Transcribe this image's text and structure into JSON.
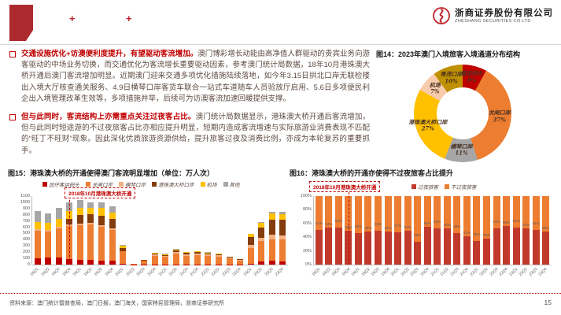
{
  "header": {
    "plus_left": "+",
    "plus_right": "+",
    "company_cn": "浙商证券股份有限公司",
    "company_en": "ZHESHANG SECURITIES CO.LTD",
    "brand_red": "#c0242b"
  },
  "bullets": [
    {
      "lead": "交通设施优化+访澳便利度提升，有望驱动客流增加。",
      "body": "澳门博彩增长动能由高净值人群驱动的贵宾业务向游客驱动的中场业务切换，而交通优化为客流增长重要驱动因素，参考澳门统计局数据，18年10月港珠澳大桥开通后澳门客流增加明显。近期澳门迎来交通多项优化措施陆续落地，如今年3.15日拱北口岸无联检楼出入境大厅核查通关服务、4.9日横琴口岸客货车联合一站式车道随车人员验放厅启用、5.6日多项便民利企出入境管理改革生效等，多项措施并举，后续可为访澳客流加速回暖提供支撑。"
    },
    {
      "lead": "但与此同时，客流结构上亦需重点关注过夜客占比。",
      "body": "澳门统计局数据显示，港珠澳大桥开通后客流增加，但与此同时短途游的不过夜旅客占比亦相应提升明显，短期内造成客流增速与实际旅游业消费表现不匹配的“旺丁不旺财”现象。因此深化优质旅游资源供给，提升旅客过夜及消费比例，亦成为本轮复苏的重要抓手。"
    }
  ],
  "fig14_title": "图14：2023年澳门入境旅客入境通道分布结构",
  "fig15_title": "图15：港珠澳大桥的开通使得澳门客流明显增加（单位：万人次）",
  "fig16_title": "图16：港珠澳大桥的开通亦使得不过夜旅客占比提升",
  "chart_data": [
    {
      "type": "pie",
      "title": "2023年澳门入境旅客入境通道分布结构",
      "donut": true,
      "slices": [
        {
          "label": "客运码头",
          "value": 8,
          "color": "#C00000"
        },
        {
          "label": "关闸口岸",
          "value": 37,
          "color": "#ED7D31"
        },
        {
          "label": "横琴口岸",
          "value": 11,
          "color": "#A6A6A6"
        },
        {
          "label": "港珠澳大桥口岸",
          "value": 27,
          "color": "#FFC000"
        },
        {
          "label": "机场",
          "value": 7,
          "color": "#F8CBAD"
        },
        {
          "label": "青茂口岸",
          "value": 10,
          "color": "#BF9000"
        }
      ]
    },
    {
      "type": "bar",
      "stacked": true,
      "title": "港珠澳大桥的开通使得澳门客流明显增加（单位：万人次）",
      "ylim": [
        0,
        1100
      ],
      "ytick_step": 100,
      "grid": false,
      "legend_position": "top",
      "annotation": "2018年10月港珠澳大桥开通",
      "annotation_line_index": 3.5,
      "categories": [
        "18Q1",
        "18Q2",
        "18Q3",
        "18Q4",
        "19Q1",
        "19Q2",
        "19Q3",
        "19Q4",
        "20Q1",
        "20Q2",
        "20Q3",
        "20Q4",
        "21Q1",
        "21Q2",
        "21Q3",
        "21Q4",
        "22Q1",
        "22Q2",
        "22Q3",
        "22Q4",
        "23Q1",
        "23Q2",
        "23Q3",
        "23Q4"
      ],
      "series": [
        {
          "name": "氹仔客运码头",
          "color": "#C00000",
          "values": [
            100,
            115,
            120,
            95,
            75,
            70,
            65,
            60,
            15,
            2,
            3,
            5,
            3,
            5,
            4,
            4,
            3,
            3,
            2,
            2,
            10,
            55,
            60,
            55
          ]
        },
        {
          "name": "关闸口岸",
          "color": "#ED7D31",
          "values": [
            450,
            420,
            460,
            530,
            555,
            580,
            545,
            500,
            195,
            10,
            60,
            140,
            120,
            170,
            140,
            150,
            135,
            125,
            95,
            62,
            260,
            320,
            350,
            345
          ]
        },
        {
          "name": "横琴口岸",
          "color": "#F4B183",
          "values": [
            25,
            25,
            25,
            25,
            25,
            25,
            25,
            25,
            10,
            1,
            5,
            15,
            20,
            30,
            25,
            28,
            25,
            22,
            15,
            10,
            45,
            60,
            75,
            70
          ]
        },
        {
          "name": "港珠澳大桥口岸",
          "color": "#843C0C",
          "values": [
            0,
            0,
            0,
            85,
            145,
            130,
            155,
            145,
            45,
            1,
            5,
            15,
            15,
            20,
            18,
            20,
            18,
            15,
            12,
            12,
            130,
            165,
            240,
            255
          ]
        },
        {
          "name": "机场",
          "color": "#FFC000",
          "values": [
            110,
            115,
            130,
            120,
            115,
            110,
            115,
            110,
            35,
            1,
            5,
            13,
            13,
            22,
            15,
            15,
            15,
            12,
            7,
            5,
            45,
            65,
            95,
            90
          ]
        },
        {
          "name": "其他",
          "color": "#A6A6A6",
          "values": [
            170,
            150,
            175,
            145,
            120,
            85,
            95,
            100,
            20,
            0,
            2,
            2,
            2,
            3,
            2,
            2,
            2,
            1,
            1,
            1,
            10,
            15,
            30,
            35
          ]
        }
      ]
    },
    {
      "type": "bar",
      "stacked": true,
      "percent": true,
      "title": "港珠澳大桥的开通亦使得不过夜旅客占比提升",
      "ylim": [
        0,
        100
      ],
      "yticks": [
        "0%",
        "20%",
        "40%",
        "60%",
        "80%",
        "100%"
      ],
      "grid": false,
      "legend_position": "top",
      "annotation": "2018年10月港珠澳大桥开通",
      "annotation_line_index": 3.5,
      "categories": [
        "18Q1",
        "18Q2",
        "18Q3",
        "18Q4",
        "19Q1",
        "19Q2",
        "19Q3",
        "19Q4",
        "20Q1",
        "20Q2",
        "20Q3",
        "20Q4",
        "21Q1",
        "21Q2",
        "21Q3",
        "21Q4",
        "22Q1",
        "22Q2",
        "22Q3",
        "22Q4",
        "23Q1",
        "23Q2",
        "23Q3",
        "23Q4"
      ],
      "series": [
        {
          "name": "过夜旅客",
          "color": "#C0392B",
          "values": [
            51,
            54,
            54,
            49,
            46,
            48,
            49,
            48,
            47,
            50,
            33,
            55,
            53,
            53,
            46,
            41,
            35,
            38,
            53,
            56,
            54,
            53,
            51,
            48
          ]
        },
        {
          "name": "不过夜旅客",
          "color": "#ED7D31",
          "values": [
            49,
            46,
            46,
            51,
            54,
            52,
            51,
            52,
            53,
            50,
            67,
            45,
            47,
            47,
            54,
            59,
            65,
            62,
            47,
            44,
            46,
            47,
            49,
            52
          ]
        }
      ],
      "data_labels": "过夜旅客占比"
    }
  ],
  "footer": {
    "source": "资料来源：澳门统计暨普查局，澳门日报，澳门海关，国家移民管理局，浙商证券研究所",
    "page": "15"
  }
}
